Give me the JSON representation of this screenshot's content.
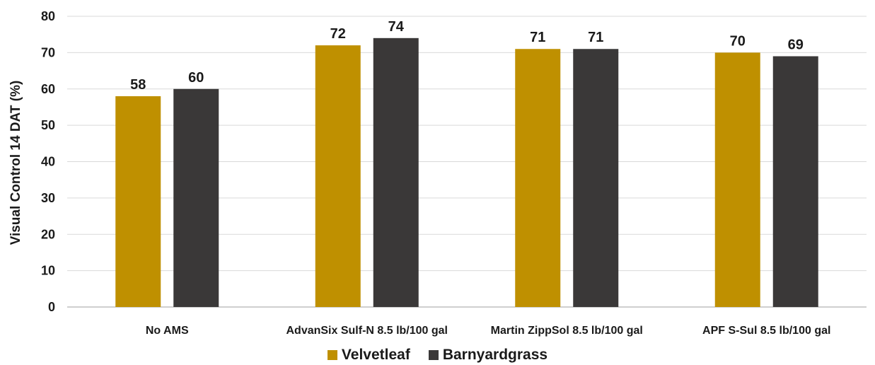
{
  "chart_data": {
    "type": "bar",
    "title": "",
    "ylabel": "Visual Control 14 DAT (%)",
    "xlabel": "",
    "ylim": [
      0,
      80
    ],
    "yticks": [
      0,
      10,
      20,
      30,
      40,
      50,
      60,
      70,
      80
    ],
    "grid": true,
    "legend_position": "bottom",
    "categories": [
      "No AMS",
      "AdvanSix Sulf-N 8.5 lb/100 gal",
      "Martin ZippSol 8.5 lb/100 gal",
      "APF S-Sul 8.5 lb/100 gal"
    ],
    "series": [
      {
        "name": "Velvetleaf",
        "color": "#bf9000",
        "values": [
          58,
          72,
          71,
          70
        ]
      },
      {
        "name": "Barnyardgrass",
        "color": "#3a3838",
        "values": [
          60,
          74,
          71,
          69
        ]
      }
    ]
  }
}
